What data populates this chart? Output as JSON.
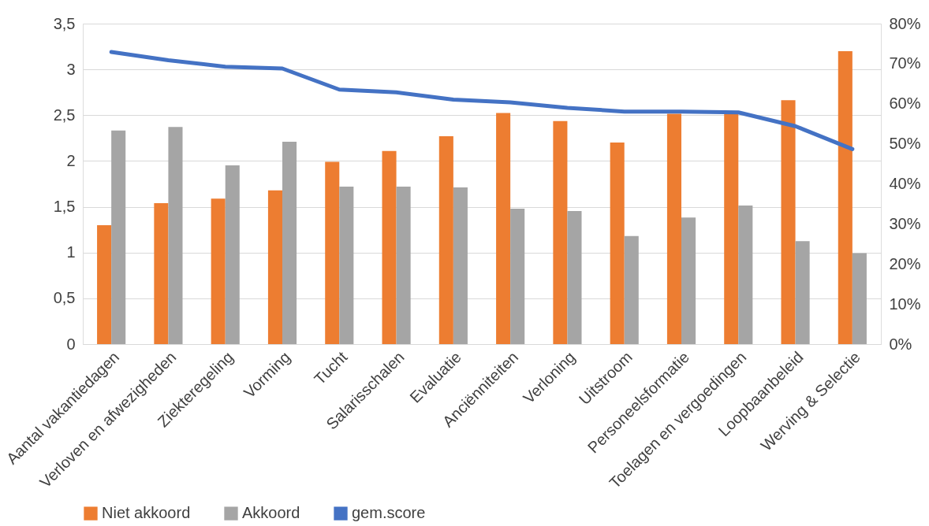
{
  "chart_data": {
    "type": "bar",
    "categories": [
      "Aantal vakantiedagen",
      "Verloven en afwezigheden",
      "Ziekteregeling",
      "Vorming",
      "Tucht",
      "Salarisschalen",
      "Evaluatie",
      "Anciënniteiten",
      "Verloning",
      "Uitstroom",
      "Personeelsformatie",
      "Toelagen en vergoedingen",
      "Loopbaanbeleid",
      "Werving & Selectie"
    ],
    "series": [
      {
        "name": "Niet akkoord",
        "axis": "y2",
        "color": "#ed7d31",
        "values": [
          29.7,
          35.2,
          36.3,
          38.4,
          45.5,
          48.2,
          51.9,
          57.7,
          55.7,
          50.3,
          57.5,
          57.5,
          60.9,
          73.1
        ]
      },
      {
        "name": "Akkoord",
        "axis": "y2",
        "color": "#a5a5a5",
        "values": [
          53.3,
          54.2,
          44.6,
          50.5,
          39.3,
          39.3,
          39.1,
          33.8,
          33.2,
          27.0,
          31.6,
          34.6,
          25.7,
          22.7
        ]
      },
      {
        "name": "gem.score",
        "type": "line",
        "color": "#4472c4",
        "values": [
          3.19,
          3.1,
          3.03,
          3.01,
          2.78,
          2.75,
          2.67,
          2.64,
          2.58,
          2.54,
          2.54,
          2.53,
          2.38,
          2.13
        ]
      }
    ],
    "ylim": [
      0,
      3.5
    ],
    "yticks": [
      0,
      {
        "value": 0.5,
        "label": "0,5"
      },
      1,
      {
        "value": 1.5,
        "label": "1,5"
      },
      2,
      {
        "value": 2.5,
        "label": "2,5"
      },
      3,
      {
        "value": 3.5,
        "label": "3,5"
      }
    ],
    "y2lim": [
      0,
      80
    ],
    "y2ticks": [
      {
        "value": 0,
        "label": "0%"
      },
      {
        "value": 10,
        "label": "10%"
      },
      {
        "value": 20,
        "label": "20%"
      },
      {
        "value": 30,
        "label": "30%"
      },
      {
        "value": 40,
        "label": "40%"
      },
      {
        "value": 50,
        "label": "50%"
      },
      {
        "value": 60,
        "label": "60%"
      },
      {
        "value": 70,
        "label": "70%"
      },
      {
        "value": 80,
        "label": "80%"
      }
    ],
    "grid": "y",
    "legend": "bottom",
    "line_style": "solid",
    "marker": "none"
  }
}
